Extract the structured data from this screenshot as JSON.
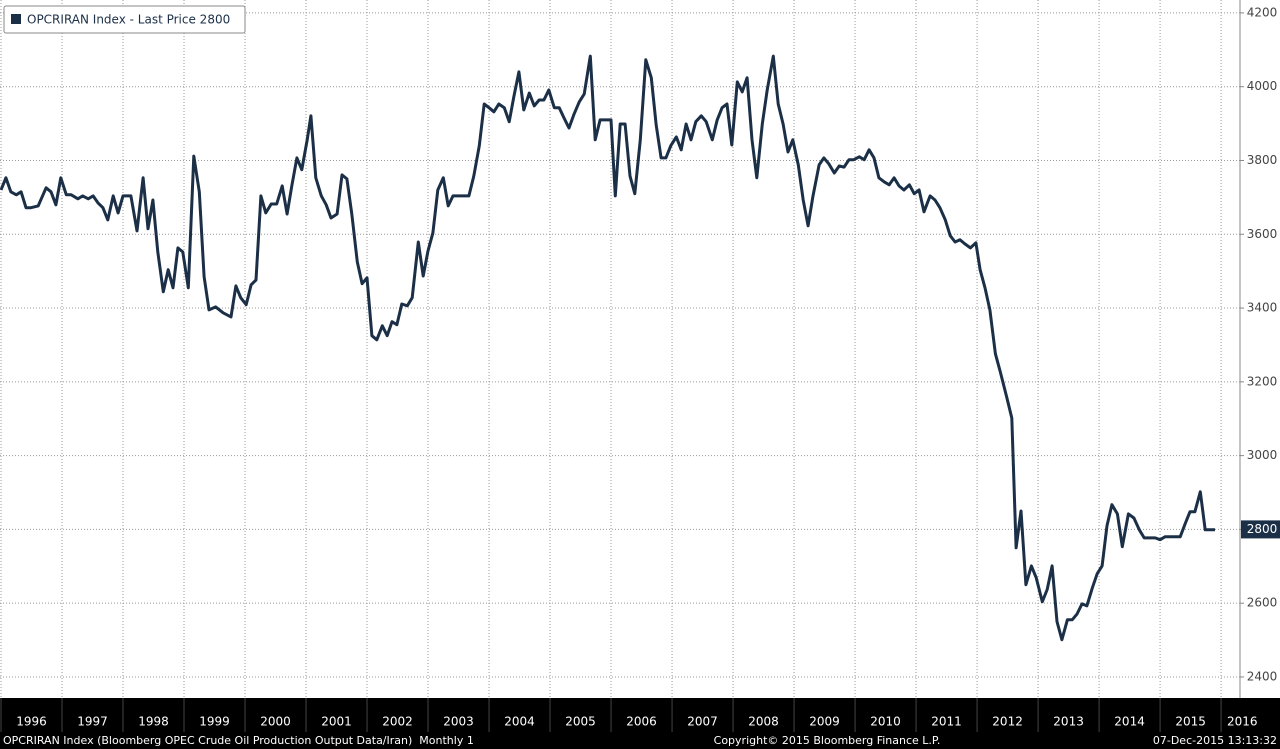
{
  "chart_data": {
    "type": "line",
    "x": [
      1996.0,
      1996.08,
      1996.16,
      1996.25,
      1996.33,
      1996.41,
      1996.49,
      1996.61,
      1996.74,
      1996.82,
      1996.9,
      1996.98,
      1997.07,
      1997.15,
      1997.26,
      1997.34,
      1997.43,
      1997.51,
      1997.59,
      1997.67,
      1997.75,
      1997.84,
      1997.92,
      1998.0,
      1998.13,
      1998.23,
      1998.33,
      1998.41,
      1998.49,
      1998.57,
      1998.66,
      1998.74,
      1998.82,
      1998.9,
      1998.98,
      1999.07,
      1999.16,
      1999.25,
      1999.33,
      1999.41,
      1999.52,
      1999.64,
      1999.77,
      1999.85,
      1999.93,
      2000.02,
      2000.1,
      2000.18,
      2000.26,
      2000.34,
      2000.43,
      2000.52,
      2000.61,
      2000.69,
      2000.77,
      2000.85,
      2000.93,
      2001.02,
      2001.08,
      2001.16,
      2001.25,
      2001.33,
      2001.41,
      2001.51,
      2001.59,
      2001.67,
      2001.75,
      2001.84,
      2001.92,
      2002.0,
      2002.08,
      2002.16,
      2002.25,
      2002.33,
      2002.41,
      2002.49,
      2002.57,
      2002.66,
      2002.74,
      2002.84,
      2002.92,
      2003.0,
      2003.08,
      2003.16,
      2003.25,
      2003.33,
      2003.41,
      2003.51,
      2003.59,
      2003.67,
      2003.75,
      2003.84,
      2003.92,
      2004.0,
      2004.08,
      2004.16,
      2004.25,
      2004.33,
      2004.41,
      2004.49,
      2004.57,
      2004.66,
      2004.74,
      2004.82,
      2004.9,
      2004.98,
      2005.07,
      2005.15,
      2005.23,
      2005.31,
      2005.39,
      2005.48,
      2005.56,
      2005.66,
      2005.74,
      2005.82,
      2005.9,
      2006.0,
      2006.07,
      2006.15,
      2006.23,
      2006.31,
      2006.39,
      2006.48,
      2006.57,
      2006.66,
      2006.74,
      2006.82,
      2006.9,
      2006.98,
      2007.07,
      2007.15,
      2007.23,
      2007.31,
      2007.39,
      2007.48,
      2007.56,
      2007.66,
      2007.74,
      2007.82,
      2007.9,
      2007.98,
      2008.07,
      2008.15,
      2008.23,
      2008.31,
      2008.39,
      2008.48,
      2008.56,
      2008.66,
      2008.74,
      2008.82,
      2008.9,
      2008.98,
      2009.07,
      2009.15,
      2009.23,
      2009.31,
      2009.41,
      2009.49,
      2009.57,
      2009.66,
      2009.74,
      2009.82,
      2009.9,
      2009.98,
      2010.07,
      2010.15,
      2010.23,
      2010.31,
      2010.39,
      2010.48,
      2010.56,
      2010.64,
      2010.72,
      2010.8,
      2010.89,
      2010.97,
      2011.05,
      2011.13,
      2011.23,
      2011.31,
      2011.39,
      2011.48,
      2011.56,
      2011.64,
      2011.72,
      2011.8,
      2011.89,
      2011.98,
      2012.05,
      2012.13,
      2012.21,
      2012.3,
      2012.38,
      2012.48,
      2012.57,
      2012.64,
      2012.72,
      2012.8,
      2012.89,
      2012.97,
      2013.07,
      2013.15,
      2013.23,
      2013.31,
      2013.39,
      2013.48,
      2013.56,
      2013.64,
      2013.72,
      2013.8,
      2013.89,
      2013.97,
      2014.05,
      2014.13,
      2014.21,
      2014.3,
      2014.38,
      2014.48,
      2014.57,
      2014.66,
      2014.74,
      2014.82,
      2014.92,
      2015.0,
      2015.08,
      2015.16,
      2015.25,
      2015.33,
      2015.41,
      2015.49,
      2015.57,
      2015.66,
      2015.74,
      2015.82,
      2015.9
    ],
    "series": [
      {
        "name": "OPCRIRAN Index - Last Price 2800",
        "color": "#1b2f47",
        "values": [
          3720,
          3753,
          3715,
          3707,
          3715,
          3672,
          3672,
          3677,
          3726,
          3715,
          3680,
          3753,
          3707,
          3707,
          3696,
          3704,
          3696,
          3704,
          3685,
          3672,
          3639,
          3704,
          3658,
          3704,
          3704,
          3609,
          3753,
          3615,
          3693,
          3552,
          3444,
          3504,
          3455,
          3563,
          3552,
          3455,
          3812,
          3715,
          3485,
          3395,
          3403,
          3387,
          3376,
          3460,
          3428,
          3409,
          3463,
          3476,
          3704,
          3658,
          3682,
          3682,
          3731,
          3655,
          3734,
          3807,
          3775,
          3856,
          3921,
          3753,
          3704,
          3680,
          3644,
          3655,
          3761,
          3750,
          3655,
          3525,
          3466,
          3482,
          3325,
          3314,
          3352,
          3325,
          3363,
          3355,
          3411,
          3406,
          3428,
          3579,
          3487,
          3555,
          3604,
          3720,
          3753,
          3677,
          3704,
          3704,
          3704,
          3704,
          3758,
          3840,
          3953,
          3943,
          3932,
          3953,
          3943,
          3905,
          3975,
          4040,
          3937,
          3983,
          3948,
          3964,
          3964,
          3991,
          3943,
          3943,
          3915,
          3888,
          3924,
          3959,
          3980,
          4083,
          3856,
          3910,
          3910,
          3910,
          3704,
          3899,
          3899,
          3758,
          3710,
          3856,
          4073,
          4024,
          3896,
          3807,
          3807,
          3840,
          3864,
          3829,
          3899,
          3856,
          3905,
          3921,
          3905,
          3856,
          3910,
          3943,
          3953,
          3842,
          4013,
          3986,
          4024,
          3856,
          3753,
          3899,
          3991,
          4083,
          3953,
          3899,
          3823,
          3856,
          3788,
          3693,
          3623,
          3704,
          3788,
          3807,
          3791,
          3766,
          3785,
          3782,
          3802,
          3802,
          3810,
          3802,
          3829,
          3807,
          3753,
          3742,
          3734,
          3753,
          3731,
          3720,
          3734,
          3710,
          3720,
          3661,
          3704,
          3693,
          3672,
          3639,
          3596,
          3579,
          3585,
          3574,
          3563,
          3577,
          3504,
          3455,
          3395,
          3276,
          3227,
          3162,
          3102,
          2750,
          2850,
          2650,
          2701,
          2669,
          2604,
          2637,
          2701,
          2550,
          2501,
          2555,
          2555,
          2571,
          2598,
          2593,
          2642,
          2680,
          2701,
          2810,
          2867,
          2842,
          2753,
          2842,
          2831,
          2799,
          2777,
          2777,
          2777,
          2772,
          2780,
          2780,
          2780,
          2780,
          2815,
          2848,
          2848,
          2902,
          2799,
          2799,
          2799
        ]
      }
    ],
    "xlim": [
      1996,
      2016.31
    ],
    "xticks": [
      1996,
      1997,
      1998,
      1999,
      2000,
      2001,
      2002,
      2003,
      2004,
      2005,
      2006,
      2007,
      2008,
      2009,
      2010,
      2011,
      2012,
      2013,
      2014,
      2015,
      2016
    ],
    "ylim": [
      2343,
      4235
    ],
    "yticks": [
      2400,
      2600,
      2800,
      3000,
      3200,
      3400,
      3600,
      3800,
      4000,
      4200
    ],
    "last_price": 2800,
    "grid": true
  },
  "footer": {
    "description": "OPCRIRAN Index (Bloomberg OPEC Crude Oil Production Output Data/Iran)  Monthly 1",
    "copyright": "Copyright© 2015 Bloomberg Finance L.P.",
    "timestamp": "07-Dec-2015 13:13:32"
  }
}
